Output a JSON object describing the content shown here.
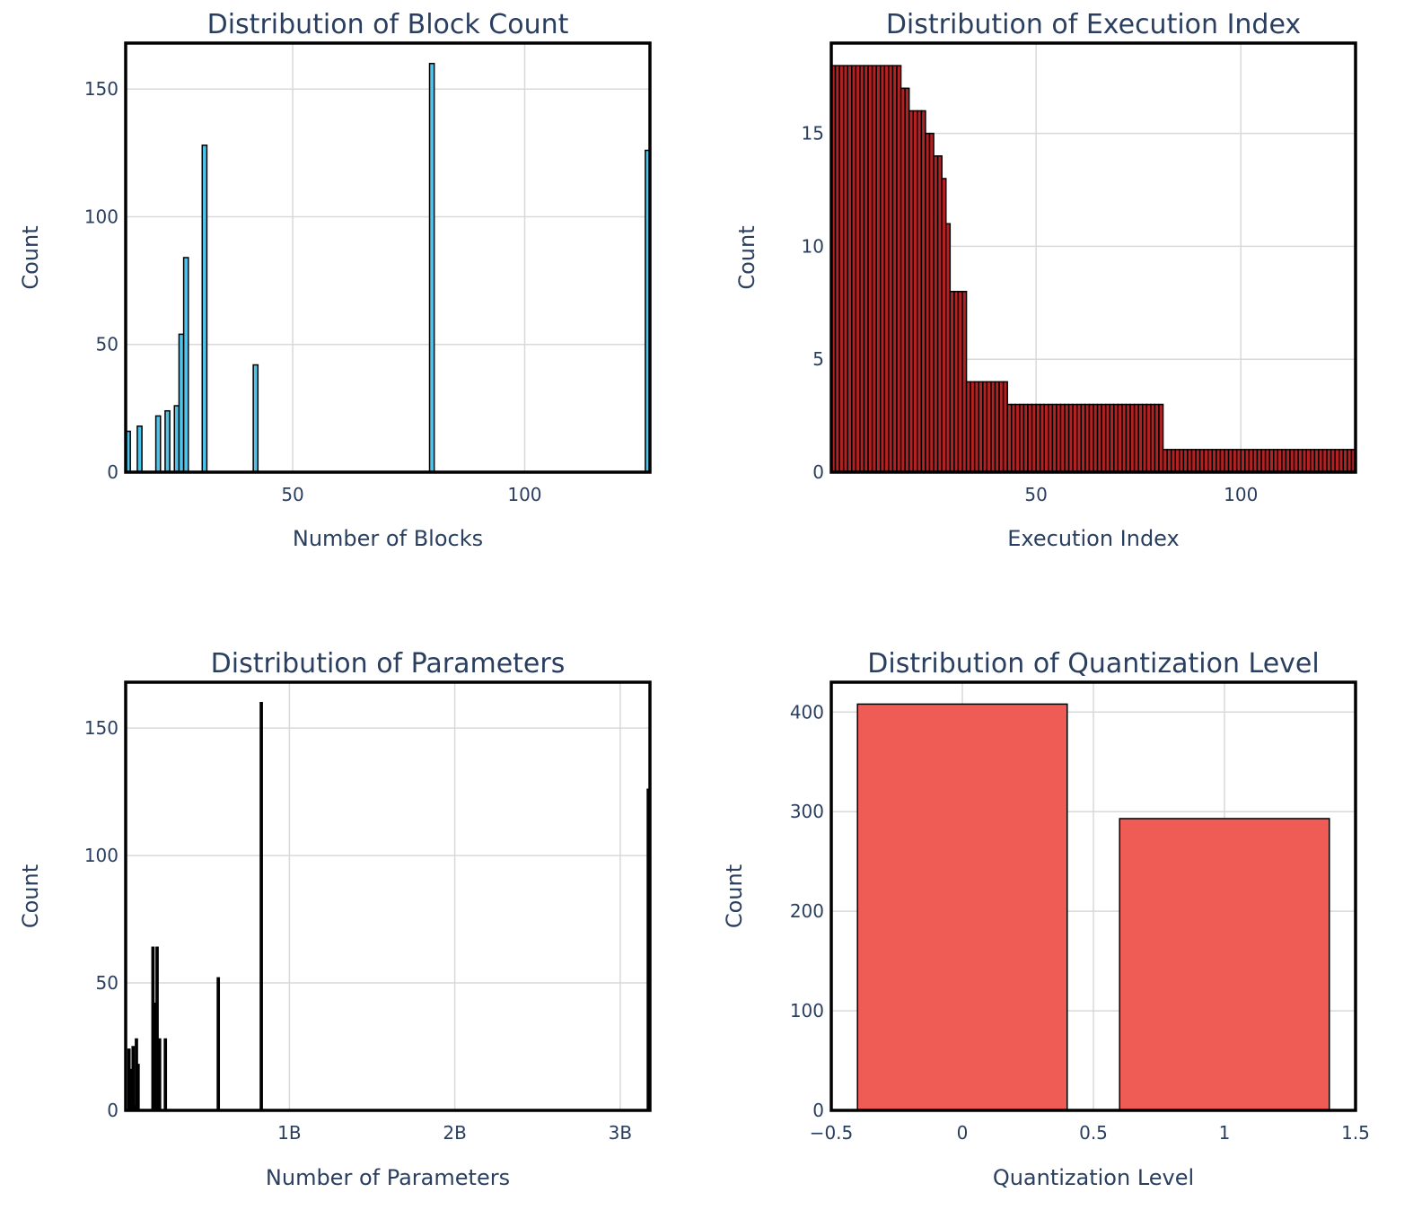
{
  "chart_data": [
    {
      "type": "bar",
      "title": "Distribution of Block Count",
      "xlabel": "Number of Blocks",
      "ylabel": "Count",
      "xlim": [
        14,
        127
      ],
      "ylim": [
        0,
        168
      ],
      "xticks": [
        {
          "value": 50,
          "label": "50"
        },
        {
          "value": 100,
          "label": "100"
        }
      ],
      "yticks": [
        {
          "value": 0,
          "label": "0"
        },
        {
          "value": 50,
          "label": "50"
        },
        {
          "value": 100,
          "label": "100"
        },
        {
          "value": 150,
          "label": "150"
        }
      ],
      "bar_width": 1,
      "fill_color": "#4fc3e8",
      "outline_color": "#000000",
      "x": [
        14.5,
        17,
        21,
        23,
        25,
        26,
        27,
        31,
        42,
        80,
        126.5
      ],
      "values": [
        16,
        18,
        22,
        24,
        26,
        54,
        84,
        128,
        42,
        160,
        126
      ]
    },
    {
      "type": "bar",
      "title": "Distribution of Execution Index",
      "xlabel": "Execution Index",
      "ylabel": "Count",
      "xlim": [
        0,
        128
      ],
      "ylim": [
        0,
        19
      ],
      "xticks": [
        {
          "value": 50,
          "label": "50"
        },
        {
          "value": 100,
          "label": "100"
        }
      ],
      "yticks": [
        {
          "value": 0,
          "label": "0"
        },
        {
          "value": 5,
          "label": "5"
        },
        {
          "value": 10,
          "label": "10"
        },
        {
          "value": 15,
          "label": "15"
        }
      ],
      "bar_width": 1,
      "fill_color": "#b22222",
      "outline_color": "#000000",
      "x": [
        0.5,
        1.5,
        2.5,
        3.5,
        4.5,
        5.5,
        6.5,
        7.5,
        8.5,
        9.5,
        10.5,
        11.5,
        12.5,
        13.5,
        14.5,
        15.5,
        16.5,
        17.5,
        18.5,
        19.5,
        20.5,
        21.5,
        22.5,
        23.5,
        24.5,
        25.5,
        26.5,
        27.5,
        28.5,
        29.5,
        30.5,
        31.5,
        32.5,
        33.5,
        34.5,
        35.5,
        36.5,
        37.5,
        38.5,
        39.5,
        40.5,
        41.5,
        42.5,
        43.5,
        44.5,
        45.5,
        46.5,
        47.5,
        48.5,
        49.5,
        50.5,
        51.5,
        52.5,
        53.5,
        54.5,
        55.5,
        56.5,
        57.5,
        58.5,
        59.5,
        60.5,
        61.5,
        62.5,
        63.5,
        64.5,
        65.5,
        66.5,
        67.5,
        68.5,
        69.5,
        70.5,
        71.5,
        72.5,
        73.5,
        74.5,
        75.5,
        76.5,
        77.5,
        78.5,
        79.5,
        80.5,
        81.5,
        82.5,
        83.5,
        84.5,
        85.5,
        86.5,
        87.5,
        88.5,
        89.5,
        90.5,
        91.5,
        92.5,
        93.5,
        94.5,
        95.5,
        96.5,
        97.5,
        98.5,
        99.5,
        100.5,
        101.5,
        102.5,
        103.5,
        104.5,
        105.5,
        106.5,
        107.5,
        108.5,
        109.5,
        110.5,
        111.5,
        112.5,
        113.5,
        114.5,
        115.5,
        116.5,
        117.5,
        118.5,
        119.5,
        120.5,
        121.5,
        122.5,
        123.5,
        124.5,
        125.5,
        126.5,
        127.5
      ],
      "values": [
        18,
        18,
        18,
        18,
        18,
        18,
        18,
        18,
        18,
        18,
        18,
        18,
        18,
        18,
        18,
        18,
        18,
        17,
        17,
        16,
        16,
        16,
        16,
        15,
        15,
        14,
        14,
        13,
        11,
        8,
        8,
        8,
        8,
        4,
        4,
        4,
        4,
        4,
        4,
        4,
        4,
        4,
        4,
        3,
        3,
        3,
        3,
        3,
        3,
        3,
        3,
        3,
        3,
        3,
        3,
        3,
        3,
        3,
        3,
        3,
        3,
        3,
        3,
        3,
        3,
        3,
        3,
        3,
        3,
        3,
        3,
        3,
        3,
        3,
        3,
        3,
        3,
        3,
        3,
        3,
        3,
        1,
        1,
        1,
        1,
        1,
        1,
        1,
        1,
        1,
        1,
        1,
        1,
        1,
        1,
        1,
        1,
        1,
        1,
        1,
        1,
        1,
        1,
        1,
        1,
        1,
        1,
        1,
        1,
        1,
        1,
        1,
        1,
        1,
        1,
        1,
        1,
        1,
        1,
        1,
        1,
        1,
        1,
        1,
        1,
        1,
        1,
        1
      ]
    },
    {
      "type": "bar",
      "title": "Distribution of Parameters",
      "xlabel": "Number of Parameters",
      "ylabel": "Count",
      "xlim": [
        0.01,
        3.18
      ],
      "ylim": [
        0,
        168
      ],
      "xticks": [
        {
          "value": 1,
          "label": "1B"
        },
        {
          "value": 2,
          "label": "2B"
        },
        {
          "value": 3,
          "label": "3B"
        }
      ],
      "yticks": [
        {
          "value": 0,
          "label": "0"
        },
        {
          "value": 50,
          "label": "50"
        },
        {
          "value": 100,
          "label": "100"
        },
        {
          "value": 150,
          "label": "150"
        }
      ],
      "bar_width": 0.012,
      "fill_color": "#000000",
      "outline_color": "#000000",
      "x": [
        0.03,
        0.045,
        0.055,
        0.065,
        0.075,
        0.085,
        0.175,
        0.19,
        0.2,
        0.215,
        0.25,
        0.57,
        0.83,
        3.17
      ],
      "values": [
        24,
        16,
        25,
        2,
        28,
        18,
        64,
        42,
        64,
        28,
        28,
        52,
        160,
        126
      ]
    },
    {
      "type": "bar",
      "title": "Distribution of Quantization Level",
      "xlabel": "Quantization Level",
      "ylabel": "Count",
      "xlim": [
        -0.5,
        1.5
      ],
      "ylim": [
        0,
        430
      ],
      "xticks": [
        {
          "value": -0.5,
          "label": "−0.5"
        },
        {
          "value": 0,
          "label": "0"
        },
        {
          "value": 0.5,
          "label": "0.5"
        },
        {
          "value": 1,
          "label": "1"
        },
        {
          "value": 1.5,
          "label": "1.5"
        }
      ],
      "yticks": [
        {
          "value": 0,
          "label": "0"
        },
        {
          "value": 100,
          "label": "100"
        },
        {
          "value": 200,
          "label": "200"
        },
        {
          "value": 300,
          "label": "300"
        },
        {
          "value": 400,
          "label": "400"
        }
      ],
      "bar_width": 0.8,
      "fill_color": "#ef5b55",
      "outline_color": "#000000",
      "x": [
        0,
        1
      ],
      "values": [
        408,
        293
      ]
    }
  ]
}
